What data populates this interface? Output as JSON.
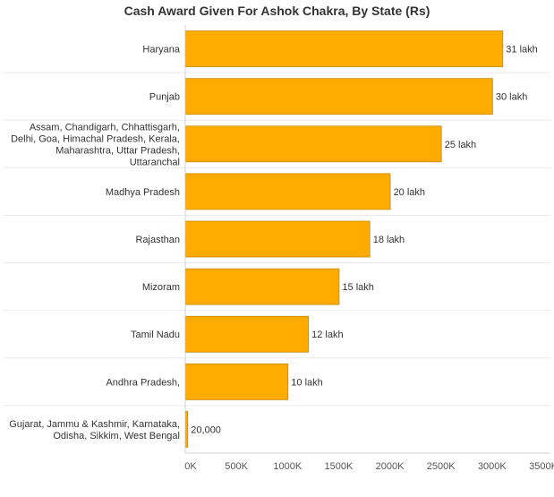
{
  "chart_data": {
    "type": "bar",
    "orientation": "horizontal",
    "title": "Cash Award Given For Ashok Chakra, By State (Rs)",
    "categories": [
      "Haryana",
      "Punjab",
      "Assam, Chandigarh, Chhattisgarh, Delhi, Goa, Himachal Pradesh, Kerala, Maharashtra, Uttar Pradesh, Uttaranchal",
      "Madhya Pradesh",
      "Rajasthan",
      "Mizoram",
      "Tamil Nadu",
      "Andhra Pradesh,",
      "Gujarat, Jammu & Kashmir, Karnataka, Odisha, Sikkim, West Bengal"
    ],
    "category_lines": [
      [
        "Haryana"
      ],
      [
        "Punjab"
      ],
      [
        "Assam, Chandigarh, Chhattisgarh,",
        "Delhi, Goa, Himachal Pradesh, Kerala,",
        "Maharashtra, Uttar Pradesh,",
        "Uttaranchal"
      ],
      [
        "Madhya Pradesh"
      ],
      [
        "Rajasthan"
      ],
      [
        "Mizoram"
      ],
      [
        "Tamil Nadu"
      ],
      [
        "Andhra Pradesh,"
      ],
      [
        "Gujarat, Jammu & Kashmir, Karnataka,",
        "Odisha, Sikkim, West Bengal"
      ]
    ],
    "values": [
      3100000,
      3000000,
      2500000,
      2000000,
      1800000,
      1500000,
      1200000,
      1000000,
      20000
    ],
    "value_labels": [
      "31 lakh",
      "30 lakh",
      "25 lakh",
      "20 lakh",
      "18 lakh",
      "15 lakh",
      "12 lakh",
      "10 lakh",
      "20,000"
    ],
    "xlim": [
      0,
      3500000
    ],
    "x_ticks": [
      0,
      500000,
      1000000,
      1500000,
      2000000,
      2500000,
      3000000,
      3500000
    ],
    "x_tick_labels": [
      "0K",
      "500K",
      "1000K",
      "1500K",
      "2000K",
      "2500K",
      "3000K",
      "3500K"
    ],
    "bar_color": "#ffab00",
    "bar_stroke": "#c98a00",
    "grid": false
  }
}
